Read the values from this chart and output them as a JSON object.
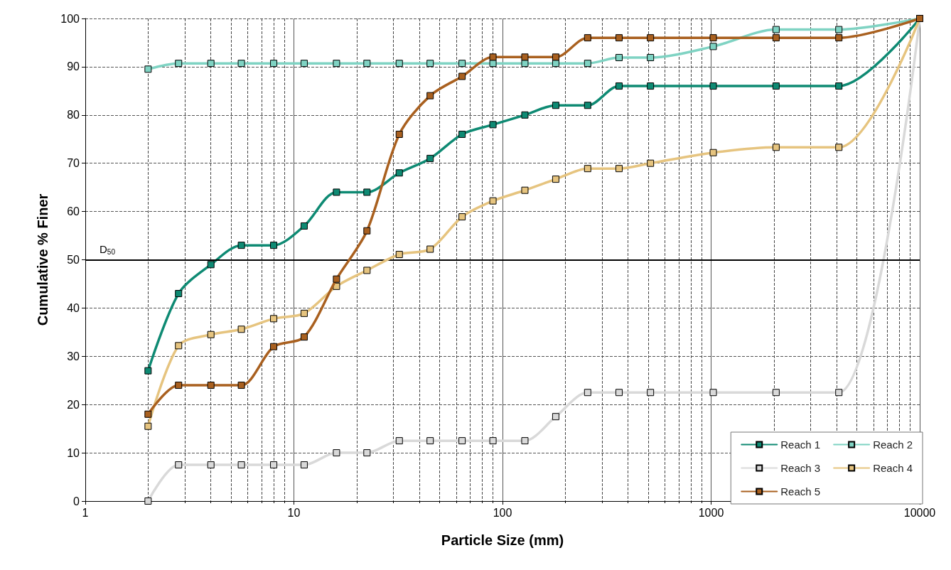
{
  "chart_data": {
    "type": "line",
    "xlabel": "Particle Size (mm)",
    "ylabel": "Cumulative % Finer",
    "x": [
      2,
      2.8,
      4,
      5.6,
      8,
      11.2,
      16,
      22.4,
      32,
      45,
      64,
      90,
      128,
      180,
      256,
      362,
      512,
      1024,
      2048,
      4096,
      10000
    ],
    "series": [
      {
        "name": "Reach 1",
        "color": "#0e8a73",
        "values": [
          27,
          43,
          49,
          53,
          53,
          57,
          64,
          64,
          68,
          71,
          76,
          78,
          80,
          82,
          82,
          86,
          86,
          86,
          86,
          86,
          100
        ]
      },
      {
        "name": "Reach 2",
        "color": "#7fd3c3",
        "values": [
          89.5,
          90.7,
          90.7,
          90.7,
          90.7,
          90.7,
          90.7,
          90.7,
          90.7,
          90.7,
          90.7,
          90.7,
          90.7,
          90.7,
          90.7,
          91.9,
          91.9,
          94.2,
          97.7,
          97.7,
          100
        ]
      },
      {
        "name": "Reach 3",
        "color": "#d9d9d9",
        "values": [
          0,
          7.5,
          7.5,
          7.5,
          7.5,
          7.5,
          10,
          10,
          12.5,
          12.5,
          12.5,
          12.5,
          12.5,
          17.5,
          22.5,
          22.5,
          22.5,
          22.5,
          22.5,
          22.5,
          100
        ]
      },
      {
        "name": "Reach 4",
        "color": "#e6c47f",
        "values": [
          15.5,
          32.2,
          34.5,
          35.6,
          37.8,
          38.9,
          44.5,
          47.8,
          51.1,
          52.2,
          58.9,
          62.2,
          64.4,
          66.7,
          68.9,
          68.9,
          70,
          72.2,
          73.3,
          73.3,
          100
        ]
      },
      {
        "name": "Reach 5",
        "color": "#a9601f",
        "values": [
          18,
          24,
          24,
          24,
          32,
          34,
          46,
          56,
          76,
          84,
          88,
          92,
          92,
          92,
          96,
          96,
          96,
          96,
          96,
          96,
          100
        ]
      }
    ],
    "log": "x",
    "xlim": [
      1,
      10000
    ],
    "xticks": [
      1,
      10,
      100,
      1000,
      10000
    ],
    "ylim": [
      0,
      100
    ],
    "yticks": [
      0,
      10,
      20,
      30,
      40,
      50,
      60,
      70,
      80,
      90,
      100
    ],
    "ref_lines": [
      {
        "axis": "y",
        "value": 50,
        "label": "D$_{50}$",
        "color": "#000000"
      }
    ],
    "grid": true,
    "legend": "bottom right",
    "marker": "square",
    "line_style": "solid"
  }
}
